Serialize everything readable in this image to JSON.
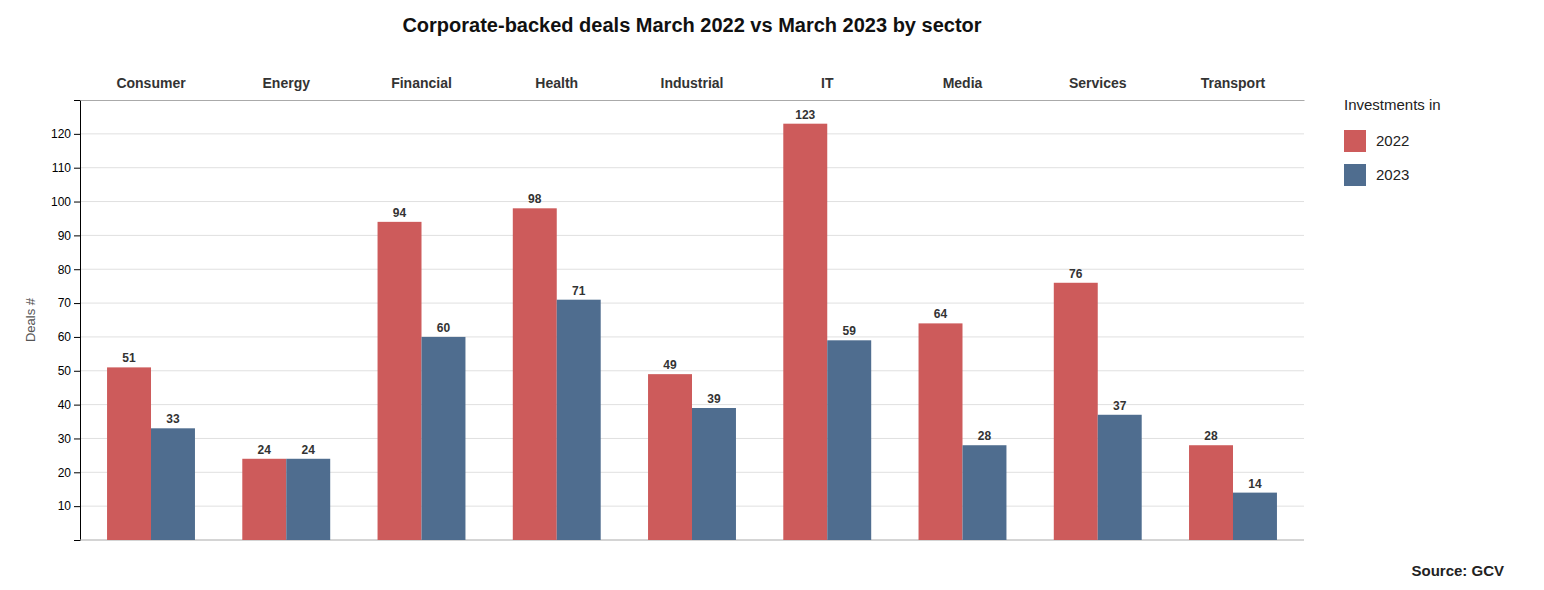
{
  "chart_data": {
    "type": "bar",
    "title": "Corporate-backed deals March 2022 vs March 2023 by sector",
    "categories": [
      "Consumer",
      "Energy",
      "Financial",
      "Health",
      "Industrial",
      "IT",
      "Media",
      "Services",
      "Transport"
    ],
    "series": [
      {
        "name": "2022",
        "color": "#cd5b5b",
        "values": [
          51,
          24,
          94,
          98,
          49,
          123,
          64,
          76,
          28
        ]
      },
      {
        "name": "2023",
        "color": "#4f6d8f",
        "values": [
          33,
          24,
          60,
          71,
          39,
          59,
          28,
          37,
          14
        ]
      }
    ],
    "ylabel": "Deals #",
    "legend_title": "Investments in",
    "source": "Source: GCV",
    "ylim": [
      0,
      130
    ],
    "yticks": [
      10,
      20,
      30,
      40,
      50,
      60,
      70,
      80,
      90,
      100,
      110,
      120
    ],
    "grid": true,
    "legend": "right",
    "data_labels": true
  }
}
